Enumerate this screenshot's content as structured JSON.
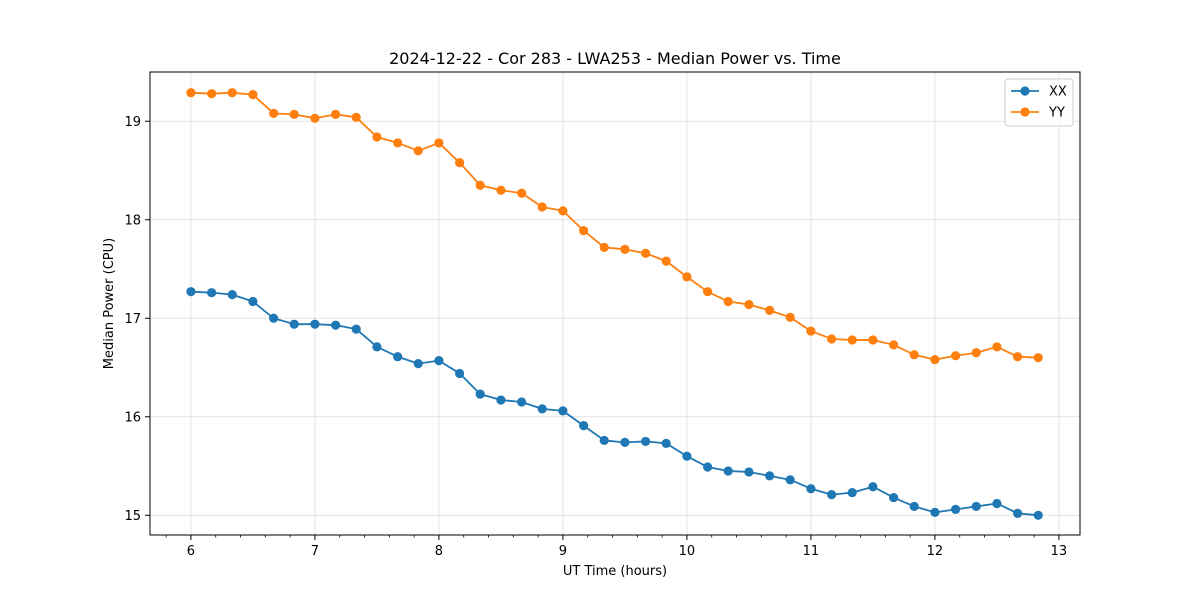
{
  "chart_data": {
    "type": "line",
    "title": "2024-12-22 - Cor 283 - LWA253 - Median Power vs. Time",
    "xlabel": "UT Time (hours)",
    "ylabel": "Median Power (CPU)",
    "xlim": [
      5.67,
      13.17
    ],
    "ylim": [
      14.8,
      19.5
    ],
    "xticks": [
      6,
      7,
      8,
      9,
      10,
      11,
      12,
      13
    ],
    "xticks_labels": [
      "6",
      "7",
      "8",
      "9",
      "10",
      "11",
      "12",
      "13"
    ],
    "yticks": [
      15,
      16,
      17,
      18,
      19
    ],
    "yticks_labels": [
      "15",
      "16",
      "17",
      "18",
      "19"
    ],
    "grid": true,
    "legend_position": "top-right",
    "x": [
      6.0,
      6.167,
      6.333,
      6.5,
      6.667,
      6.833,
      7.0,
      7.167,
      7.333,
      7.5,
      7.667,
      7.833,
      8.0,
      8.167,
      8.333,
      8.5,
      8.667,
      8.833,
      9.0,
      9.167,
      9.333,
      9.5,
      9.667,
      9.833,
      10.0,
      10.167,
      10.333,
      10.5,
      10.667,
      10.833,
      11.0,
      11.167,
      11.333,
      11.5,
      11.667,
      11.833,
      12.0,
      12.167,
      12.333,
      12.5,
      12.667,
      12.833
    ],
    "series": [
      {
        "name": "XX",
        "color": "#1f77b4",
        "values": [
          17.27,
          17.26,
          17.24,
          17.17,
          17.0,
          16.94,
          16.94,
          16.93,
          16.89,
          16.71,
          16.61,
          16.54,
          16.57,
          16.44,
          16.23,
          16.17,
          16.15,
          16.08,
          16.06,
          15.91,
          15.76,
          15.74,
          15.75,
          15.73,
          15.6,
          15.49,
          15.45,
          15.44,
          15.4,
          15.36,
          15.27,
          15.21,
          15.23,
          15.29,
          15.18,
          15.09,
          15.03,
          15.06,
          15.09,
          15.12,
          15.02,
          15.0
        ]
      },
      {
        "name": "YY",
        "color": "#ff7f0e",
        "values": [
          19.29,
          19.28,
          19.29,
          19.27,
          19.08,
          19.07,
          19.03,
          19.07,
          19.04,
          18.84,
          18.78,
          18.7,
          18.78,
          18.58,
          18.35,
          18.3,
          18.27,
          18.13,
          18.09,
          17.89,
          17.72,
          17.7,
          17.66,
          17.58,
          17.42,
          17.27,
          17.17,
          17.14,
          17.08,
          17.01,
          16.87,
          16.79,
          16.78,
          16.78,
          16.73,
          16.63,
          16.58,
          16.62,
          16.65,
          16.71,
          16.61,
          16.6
        ]
      }
    ]
  }
}
